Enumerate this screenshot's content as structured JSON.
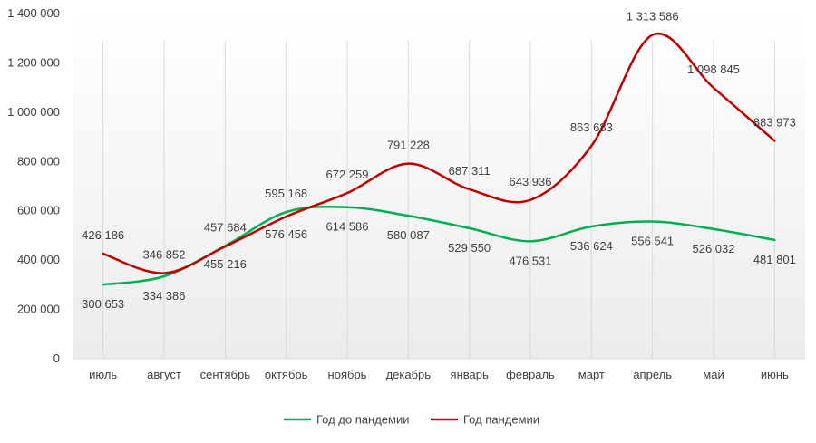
{
  "chart_data": {
    "type": "line",
    "smooth": true,
    "categories": [
      "июль",
      "август",
      "сентябрь",
      "октябрь",
      "ноябрь",
      "декабрь",
      "январь",
      "февраль",
      "март",
      "апрель",
      "май",
      "июнь"
    ],
    "ylim": [
      0,
      1400000
    ],
    "yticks": [
      0,
      200000,
      400000,
      600000,
      800000,
      1000000,
      1200000,
      1400000
    ],
    "ytick_labels": [
      "0",
      "200 000",
      "400 000",
      "600 000",
      "800 000",
      "1 000 000",
      "1 200 000",
      "1 400 000"
    ],
    "grid": "vertical",
    "legend_position": "bottom",
    "series": [
      {
        "name": "Год до пандемии",
        "color": "#00b050",
        "values": [
          300653,
          334386,
          457684,
          595168,
          614586,
          580087,
          529550,
          476531,
          536624,
          556541,
          526032,
          481801
        ],
        "labels": [
          "300 653",
          "334 386",
          "457 684",
          "595 168",
          "614 586",
          "580 087",
          "529 550",
          "476 531",
          "536 624",
          "556 541",
          "526 032",
          "481 801"
        ]
      },
      {
        "name": "Год пандемии",
        "color": "#c00000",
        "values": [
          426186,
          346852,
          455216,
          576456,
          672259,
          791228,
          687311,
          643936,
          863683,
          1313586,
          1098845,
          883973
        ],
        "labels": [
          "426 186",
          "346 852",
          "455 216",
          "576 456",
          "672 259",
          "791 228",
          "687 311",
          "643 936",
          "863 683",
          "1 313 586",
          "1 098 845",
          "883 973"
        ]
      }
    ]
  }
}
